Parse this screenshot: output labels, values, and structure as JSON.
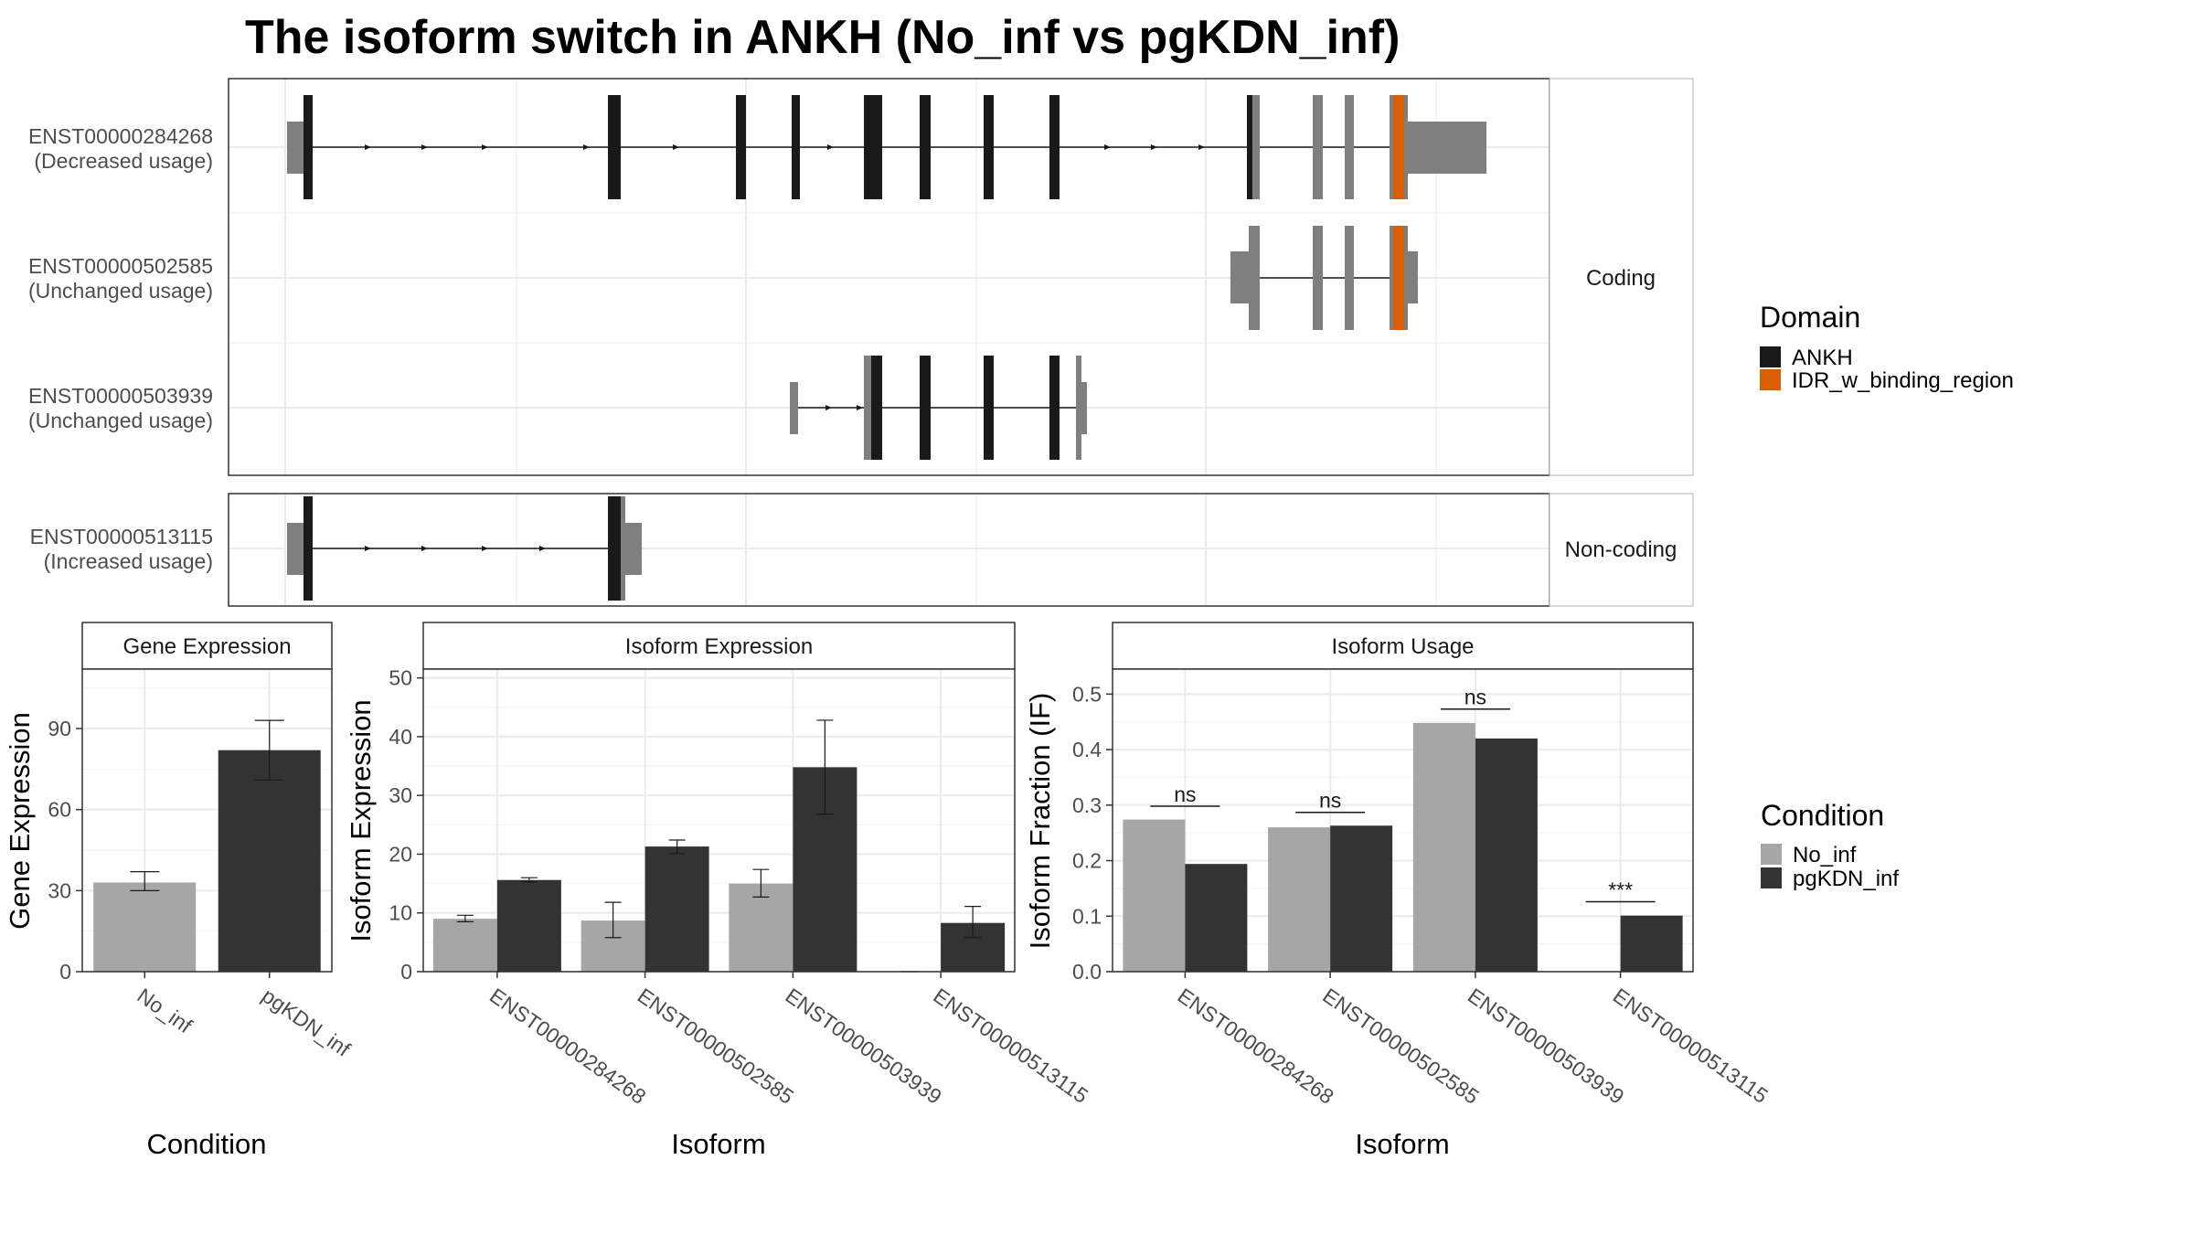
{
  "title": "The isoform switch in ANKH (No_inf vs pgKDN_inf)",
  "colors": {
    "ankh": "#1a1a1a",
    "idr": "#d95f02",
    "utr": "#7f7f7f",
    "cond_no_inf": "#a6a6a6",
    "cond_pgkdn": "#333333",
    "grid": "#ebebeb",
    "strip_text": "#1a1a1a"
  },
  "structure": {
    "facets": [
      "Coding",
      "Non-coding"
    ],
    "isoforms": [
      {
        "id": "ENST00000284268",
        "usage": "(Decreased usage)",
        "facet": "Coding"
      },
      {
        "id": "ENST00000502585",
        "usage": "(Unchanged usage)",
        "facet": "Coding"
      },
      {
        "id": "ENST00000503939",
        "usage": "(Unchanged usage)",
        "facet": "Coding"
      },
      {
        "id": "ENST00000513115",
        "usage": "(Increased usage)",
        "facet": "Non-coding"
      }
    ],
    "legend": {
      "title": "Domain",
      "items": [
        {
          "label": "ANKH",
          "color": "#1a1a1a"
        },
        {
          "label": "IDR_w_binding_region",
          "color": "#d95f02"
        }
      ]
    }
  },
  "chart_data": [
    {
      "type": "bar",
      "title": "Gene Expression",
      "xlabel": "Condition",
      "ylabel": "Gene Expression",
      "categories": [
        "No_inf",
        "pgKDN_inf"
      ],
      "values": [
        33,
        82
      ],
      "errors": [
        [
          30,
          37
        ],
        [
          71,
          93
        ]
      ],
      "ylim": [
        0,
        112
      ],
      "yticks": [
        0,
        30,
        60,
        90
      ]
    },
    {
      "type": "bar",
      "title": "Isoform Expression",
      "xlabel": "Isoform",
      "ylabel": "Isoform Expression",
      "categories": [
        "ENST00000284268",
        "ENST00000502585",
        "ENST00000503939",
        "ENST00000513115"
      ],
      "series": [
        {
          "name": "No_inf",
          "values": [
            9,
            8.7,
            15,
            0
          ],
          "errors": [
            [
              8.5,
              9.6
            ],
            [
              5.8,
              11.8
            ],
            [
              12.7,
              17.4
            ],
            [
              0,
              0
            ]
          ]
        },
        {
          "name": "pgKDN_inf",
          "values": [
            15.6,
            21.3,
            34.8,
            8.3
          ],
          "errors": [
            [
              15.3,
              16
            ],
            [
              20.1,
              22.4
            ],
            [
              26.8,
              42.8
            ],
            [
              5.8,
              11.1
            ]
          ]
        }
      ],
      "ylim": [
        0,
        51.5
      ],
      "yticks": [
        0,
        10,
        20,
        30,
        40,
        50
      ]
    },
    {
      "type": "bar",
      "title": "Isoform Usage",
      "xlabel": "Isoform",
      "ylabel": "Isoform Fraction (IF)",
      "categories": [
        "ENST00000284268",
        "ENST00000502585",
        "ENST00000503939",
        "ENST00000513115"
      ],
      "series": [
        {
          "name": "No_inf",
          "values": [
            0.274,
            0.26,
            0.448,
            0
          ]
        },
        {
          "name": "pgKDN_inf",
          "values": [
            0.194,
            0.263,
            0.42,
            0.101
          ]
        }
      ],
      "significance": [
        "ns",
        "ns",
        "ns",
        "***"
      ],
      "sig_level": [
        0.298,
        0.287,
        0.473,
        0.126
      ],
      "ylim": [
        0,
        0.545
      ],
      "yticks": [
        "0.0",
        "0.1",
        "0.2",
        "0.3",
        "0.4",
        "0.5"
      ]
    }
  ],
  "condition_legend": {
    "title": "Condition",
    "items": [
      {
        "label": "No_inf",
        "color": "#a6a6a6"
      },
      {
        "label": "pgKDN_inf",
        "color": "#333333"
      }
    ]
  }
}
